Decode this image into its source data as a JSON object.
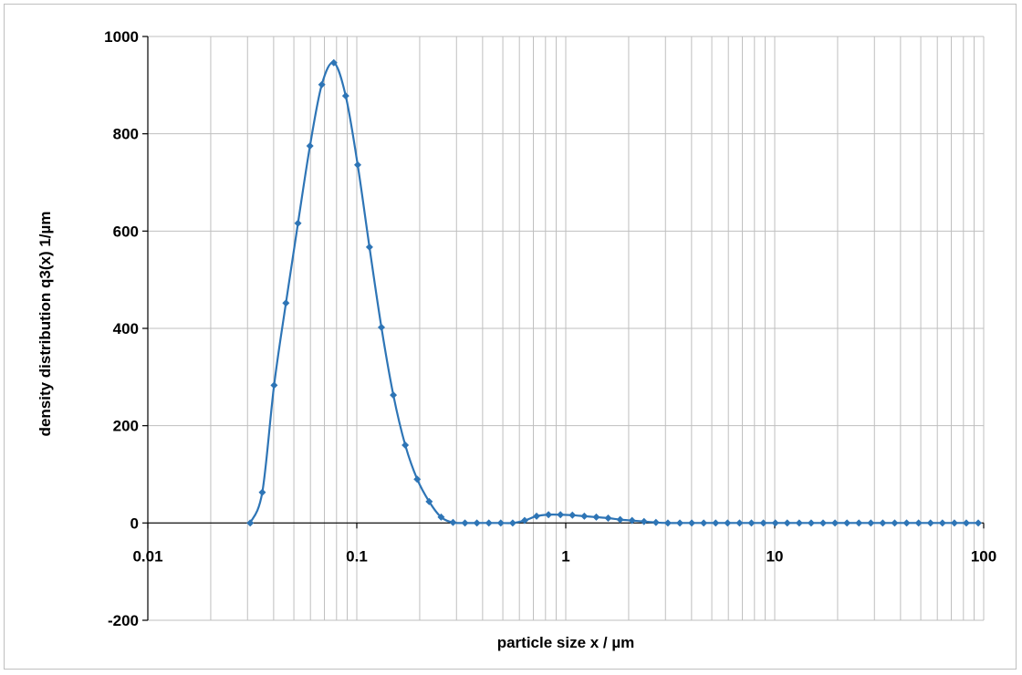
{
  "chart_data": {
    "type": "line",
    "title": "",
    "xlabel": "particle size x / µm",
    "ylabel": "density distribution q3(x) 1/µm",
    "xscale": "log",
    "xlim": [
      0.01,
      100
    ],
    "ylim": [
      -200,
      1000
    ],
    "x_ticks": [
      0.01,
      0.1,
      1,
      10,
      100
    ],
    "x_tick_labels": [
      "0.01",
      "0.1",
      "1",
      "10",
      "100"
    ],
    "y_ticks": [
      -200,
      0,
      200,
      400,
      600,
      800,
      1000
    ],
    "y_tick_labels": [
      "-200",
      "0",
      "200",
      "400",
      "600",
      "800",
      "1000"
    ],
    "grid": true,
    "legend": "none",
    "series_color": "#2E75B6",
    "series": [
      {
        "x": [
          0.0309,
          0.0353,
          0.0402,
          0.0458,
          0.0523,
          0.0597,
          0.068,
          0.0776,
          0.0885,
          0.101,
          0.115,
          0.1312,
          0.1496,
          0.1706,
          0.1946,
          0.222,
          0.2532,
          0.2888,
          0.3294,
          0.3757,
          0.4285,
          0.4887,
          0.5574,
          0.6357,
          0.7251,
          0.827,
          0.9433,
          1.076,
          1.227,
          1.4,
          1.596,
          1.821,
          2.077,
          2.369,
          2.702,
          3.082,
          3.515,
          4.009,
          4.573,
          5.216,
          5.949,
          6.785,
          7.739,
          8.827,
          10.07,
          11.48,
          13.1,
          14.94,
          17.04,
          19.43,
          22.17,
          25.28,
          28.84,
          32.89,
          37.51,
          42.79,
          48.8,
          55.66,
          63.49,
          72.41,
          82.59,
          94.2
        ],
        "values": [
          0,
          63,
          283,
          452,
          616,
          775,
          901,
          946,
          878,
          736,
          567,
          402,
          263,
          160,
          90,
          44,
          12,
          1,
          0,
          0,
          0,
          0,
          0,
          5,
          14,
          17,
          17,
          16,
          14,
          12,
          10,
          7,
          5,
          3,
          1,
          0,
          0,
          0,
          0,
          0,
          0,
          0,
          0,
          0,
          0,
          0,
          0,
          0,
          0,
          0,
          0,
          0,
          0,
          0,
          0,
          0,
          0,
          0,
          0,
          0,
          0,
          0
        ]
      }
    ]
  }
}
